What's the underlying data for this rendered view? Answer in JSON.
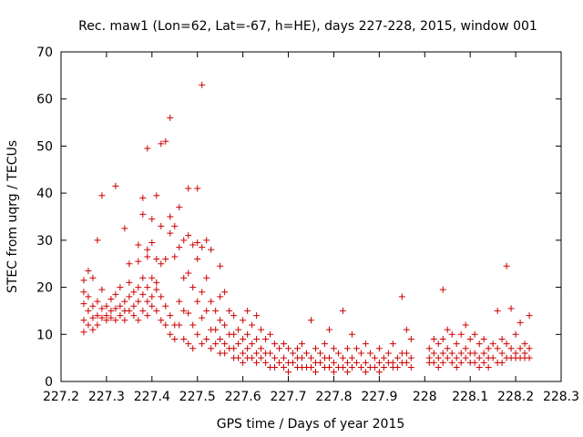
{
  "chart_data": {
    "type": "scatter",
    "title": "Rec. maw1 (Lon=62, Lat=-67, h=HE), days 227-228, 2015, window 001",
    "xlabel": "GPS time / Days of year 2015",
    "ylabel": "STEC from uqrg / TECUs",
    "xlim": [
      227.2,
      228.3
    ],
    "ylim": [
      0,
      70
    ],
    "xticks": [
      227.2,
      227.3,
      227.4,
      227.5,
      227.6,
      227.7,
      227.8,
      227.9,
      228.0,
      228.1,
      228.2,
      228.3
    ],
    "xtick_labels": [
      "227.2",
      "227.3",
      "227.4",
      "227.5",
      "227.6",
      "227.7",
      "227.8",
      "227.9",
      "228",
      "228.1",
      "228.2",
      "228.3"
    ],
    "yticks": [
      0,
      10,
      20,
      30,
      40,
      50,
      60,
      70
    ],
    "ytick_labels": [
      "0",
      "10",
      "20",
      "30",
      "40",
      "50",
      "60",
      "70"
    ],
    "marker": "plus",
    "marker_color": "#cc0000",
    "grid": false,
    "legend": "none",
    "points": [
      [
        227.25,
        21.5
      ],
      [
        227.25,
        19
      ],
      [
        227.25,
        16.5
      ],
      [
        227.25,
        13
      ],
      [
        227.25,
        10.5
      ],
      [
        227.26,
        23.5
      ],
      [
        227.26,
        18
      ],
      [
        227.26,
        15
      ],
      [
        227.26,
        12
      ],
      [
        227.27,
        22
      ],
      [
        227.27,
        16
      ],
      [
        227.27,
        13.5
      ],
      [
        227.27,
        11
      ],
      [
        227.28,
        30
      ],
      [
        227.28,
        17
      ],
      [
        227.28,
        14
      ],
      [
        227.28,
        12
      ],
      [
        227.29,
        19.5
      ],
      [
        227.29,
        15.5
      ],
      [
        227.29,
        13.5
      ],
      [
        227.29,
        39.5
      ],
      [
        227.3,
        16
      ],
      [
        227.3,
        14
      ],
      [
        227.3,
        13
      ],
      [
        227.31,
        17.5
      ],
      [
        227.31,
        15
      ],
      [
        227.31,
        13.5
      ],
      [
        227.32,
        41.5
      ],
      [
        227.32,
        18.5
      ],
      [
        227.32,
        15.5
      ],
      [
        227.32,
        13
      ],
      [
        227.33,
        20
      ],
      [
        227.33,
        16
      ],
      [
        227.33,
        14
      ],
      [
        227.34,
        32.5
      ],
      [
        227.34,
        17
      ],
      [
        227.34,
        15
      ],
      [
        227.34,
        13
      ],
      [
        227.35,
        25
      ],
      [
        227.35,
        21
      ],
      [
        227.35,
        18
      ],
      [
        227.35,
        15
      ],
      [
        227.36,
        19
      ],
      [
        227.36,
        16
      ],
      [
        227.36,
        14
      ],
      [
        227.37,
        29
      ],
      [
        227.37,
        25.5
      ],
      [
        227.37,
        20
      ],
      [
        227.37,
        17
      ],
      [
        227.37,
        13
      ],
      [
        227.38,
        39
      ],
      [
        227.38,
        35.5
      ],
      [
        227.38,
        22
      ],
      [
        227.38,
        18.5
      ],
      [
        227.38,
        15
      ],
      [
        227.39,
        49.5
      ],
      [
        227.39,
        28
      ],
      [
        227.39,
        26.5
      ],
      [
        227.39,
        20
      ],
      [
        227.39,
        17
      ],
      [
        227.39,
        14
      ],
      [
        227.4,
        34.5
      ],
      [
        227.4,
        29.5
      ],
      [
        227.4,
        22
      ],
      [
        227.4,
        18
      ],
      [
        227.4,
        16
      ],
      [
        227.41,
        39.5
      ],
      [
        227.41,
        26
      ],
      [
        227.41,
        21
      ],
      [
        227.41,
        19.5
      ],
      [
        227.41,
        15
      ],
      [
        227.42,
        50.5
      ],
      [
        227.42,
        33
      ],
      [
        227.42,
        25
      ],
      [
        227.42,
        18
      ],
      [
        227.42,
        13
      ],
      [
        227.43,
        51
      ],
      [
        227.43,
        26
      ],
      [
        227.43,
        16
      ],
      [
        227.43,
        12
      ],
      [
        227.44,
        56
      ],
      [
        227.44,
        35
      ],
      [
        227.44,
        31.5
      ],
      [
        227.44,
        14
      ],
      [
        227.44,
        10
      ],
      [
        227.45,
        33
      ],
      [
        227.45,
        26.5
      ],
      [
        227.45,
        12
      ],
      [
        227.45,
        9
      ],
      [
        227.46,
        37
      ],
      [
        227.46,
        28.5
      ],
      [
        227.46,
        17
      ],
      [
        227.46,
        12
      ],
      [
        227.47,
        30
      ],
      [
        227.47,
        22
      ],
      [
        227.47,
        15
      ],
      [
        227.47,
        9
      ],
      [
        227.48,
        41
      ],
      [
        227.48,
        31
      ],
      [
        227.48,
        23
      ],
      [
        227.48,
        14.5
      ],
      [
        227.48,
        8
      ],
      [
        227.49,
        29
      ],
      [
        227.49,
        20
      ],
      [
        227.49,
        12
      ],
      [
        227.49,
        7
      ],
      [
        227.5,
        41
      ],
      [
        227.5,
        29.5
      ],
      [
        227.5,
        26
      ],
      [
        227.5,
        17
      ],
      [
        227.5,
        10
      ],
      [
        227.51,
        63
      ],
      [
        227.51,
        28.5
      ],
      [
        227.51,
        19
      ],
      [
        227.51,
        13.5
      ],
      [
        227.51,
        8
      ],
      [
        227.52,
        30
      ],
      [
        227.52,
        22
      ],
      [
        227.52,
        15
      ],
      [
        227.52,
        9
      ],
      [
        227.53,
        28
      ],
      [
        227.53,
        17
      ],
      [
        227.53,
        11
      ],
      [
        227.53,
        7
      ],
      [
        227.54,
        15
      ],
      [
        227.54,
        11
      ],
      [
        227.54,
        8
      ],
      [
        227.55,
        24.5
      ],
      [
        227.55,
        18
      ],
      [
        227.55,
        13
      ],
      [
        227.55,
        9
      ],
      [
        227.55,
        6
      ],
      [
        227.56,
        19
      ],
      [
        227.56,
        12
      ],
      [
        227.56,
        8
      ],
      [
        227.56,
        6
      ],
      [
        227.57,
        15
      ],
      [
        227.57,
        10
      ],
      [
        227.57,
        7
      ],
      [
        227.58,
        14
      ],
      [
        227.58,
        10
      ],
      [
        227.58,
        7
      ],
      [
        227.58,
        5
      ],
      [
        227.59,
        11
      ],
      [
        227.59,
        8
      ],
      [
        227.59,
        5
      ],
      [
        227.6,
        13
      ],
      [
        227.6,
        9
      ],
      [
        227.6,
        6
      ],
      [
        227.6,
        4
      ],
      [
        227.61,
        15
      ],
      [
        227.61,
        10
      ],
      [
        227.61,
        7
      ],
      [
        227.61,
        5
      ],
      [
        227.62,
        12
      ],
      [
        227.62,
        8
      ],
      [
        227.62,
        5
      ],
      [
        227.63,
        14
      ],
      [
        227.63,
        9
      ],
      [
        227.63,
        6
      ],
      [
        227.63,
        4
      ],
      [
        227.64,
        11
      ],
      [
        227.64,
        7
      ],
      [
        227.64,
        5
      ],
      [
        227.65,
        9
      ],
      [
        227.65,
        6
      ],
      [
        227.65,
        4
      ],
      [
        227.66,
        10
      ],
      [
        227.66,
        6
      ],
      [
        227.66,
        3
      ],
      [
        227.67,
        8
      ],
      [
        227.67,
        5
      ],
      [
        227.67,
        3
      ],
      [
        227.68,
        7
      ],
      [
        227.68,
        4
      ],
      [
        227.69,
        8
      ],
      [
        227.69,
        5
      ],
      [
        227.69,
        3
      ],
      [
        227.7,
        7
      ],
      [
        227.7,
        4
      ],
      [
        227.7,
        2
      ],
      [
        227.71,
        6
      ],
      [
        227.71,
        4
      ],
      [
        227.72,
        7
      ],
      [
        227.72,
        5
      ],
      [
        227.72,
        3
      ],
      [
        227.73,
        8
      ],
      [
        227.73,
        5
      ],
      [
        227.73,
        3
      ],
      [
        227.74,
        6
      ],
      [
        227.74,
        3
      ],
      [
        227.75,
        13
      ],
      [
        227.75,
        5
      ],
      [
        227.75,
        3
      ],
      [
        227.76,
        7
      ],
      [
        227.76,
        4
      ],
      [
        227.76,
        2
      ],
      [
        227.77,
        6
      ],
      [
        227.77,
        4
      ],
      [
        227.78,
        8
      ],
      [
        227.78,
        5
      ],
      [
        227.78,
        3
      ],
      [
        227.79,
        11
      ],
      [
        227.79,
        5
      ],
      [
        227.79,
        3
      ],
      [
        227.8,
        7
      ],
      [
        227.8,
        4
      ],
      [
        227.8,
        2
      ],
      [
        227.81,
        6
      ],
      [
        227.81,
        3
      ],
      [
        227.82,
        15
      ],
      [
        227.82,
        5
      ],
      [
        227.82,
        3
      ],
      [
        227.83,
        7
      ],
      [
        227.83,
        4
      ],
      [
        227.83,
        2
      ],
      [
        227.84,
        10
      ],
      [
        227.84,
        5
      ],
      [
        227.84,
        3
      ],
      [
        227.85,
        7
      ],
      [
        227.85,
        4
      ],
      [
        227.86,
        6
      ],
      [
        227.86,
        3
      ],
      [
        227.87,
        8
      ],
      [
        227.87,
        4
      ],
      [
        227.87,
        2
      ],
      [
        227.88,
        6
      ],
      [
        227.88,
        3
      ],
      [
        227.89,
        5
      ],
      [
        227.89,
        3
      ],
      [
        227.9,
        7
      ],
      [
        227.9,
        4
      ],
      [
        227.9,
        2
      ],
      [
        227.91,
        5
      ],
      [
        227.91,
        3
      ],
      [
        227.92,
        6
      ],
      [
        227.92,
        4
      ],
      [
        227.93,
        8
      ],
      [
        227.93,
        4
      ],
      [
        227.93,
        3
      ],
      [
        227.94,
        5
      ],
      [
        227.94,
        3
      ],
      [
        227.95,
        18
      ],
      [
        227.95,
        6
      ],
      [
        227.95,
        4
      ],
      [
        227.96,
        11
      ],
      [
        227.96,
        6
      ],
      [
        227.96,
        4
      ],
      [
        227.97,
        9
      ],
      [
        227.97,
        5
      ],
      [
        227.97,
        3
      ],
      [
        228.01,
        7
      ],
      [
        228.01,
        5
      ],
      [
        228.01,
        4
      ],
      [
        228.02,
        9
      ],
      [
        228.02,
        6
      ],
      [
        228.02,
        4
      ],
      [
        228.03,
        8
      ],
      [
        228.03,
        5
      ],
      [
        228.03,
        3
      ],
      [
        228.04,
        19.5
      ],
      [
        228.04,
        9
      ],
      [
        228.04,
        6
      ],
      [
        228.04,
        4
      ],
      [
        228.05,
        11
      ],
      [
        228.05,
        7
      ],
      [
        228.05,
        5
      ],
      [
        228.06,
        10
      ],
      [
        228.06,
        6
      ],
      [
        228.06,
        4
      ],
      [
        228.07,
        8
      ],
      [
        228.07,
        5
      ],
      [
        228.07,
        3
      ],
      [
        228.08,
        10
      ],
      [
        228.08,
        6
      ],
      [
        228.08,
        4
      ],
      [
        228.09,
        12
      ],
      [
        228.09,
        7
      ],
      [
        228.09,
        5
      ],
      [
        228.1,
        9
      ],
      [
        228.1,
        6
      ],
      [
        228.1,
        4
      ],
      [
        228.11,
        10
      ],
      [
        228.11,
        6
      ],
      [
        228.11,
        4
      ],
      [
        228.12,
        8
      ],
      [
        228.12,
        5
      ],
      [
        228.12,
        3
      ],
      [
        228.13,
        9
      ],
      [
        228.13,
        6
      ],
      [
        228.13,
        4
      ],
      [
        228.14,
        7
      ],
      [
        228.14,
        5
      ],
      [
        228.14,
        3
      ],
      [
        228.15,
        8
      ],
      [
        228.15,
        5
      ],
      [
        228.16,
        15
      ],
      [
        228.16,
        7
      ],
      [
        228.16,
        4
      ],
      [
        228.17,
        9
      ],
      [
        228.17,
        6
      ],
      [
        228.17,
        4
      ],
      [
        228.18,
        24.5
      ],
      [
        228.18,
        8
      ],
      [
        228.18,
        5
      ],
      [
        228.19,
        15.5
      ],
      [
        228.19,
        7
      ],
      [
        228.19,
        5
      ],
      [
        228.2,
        10
      ],
      [
        228.2,
        6
      ],
      [
        228.2,
        5
      ],
      [
        228.21,
        12.5
      ],
      [
        228.21,
        7
      ],
      [
        228.21,
        5
      ],
      [
        228.22,
        8
      ],
      [
        228.22,
        6
      ],
      [
        228.22,
        5
      ],
      [
        228.23,
        14
      ],
      [
        228.23,
        7
      ],
      [
        228.23,
        5
      ]
    ]
  }
}
